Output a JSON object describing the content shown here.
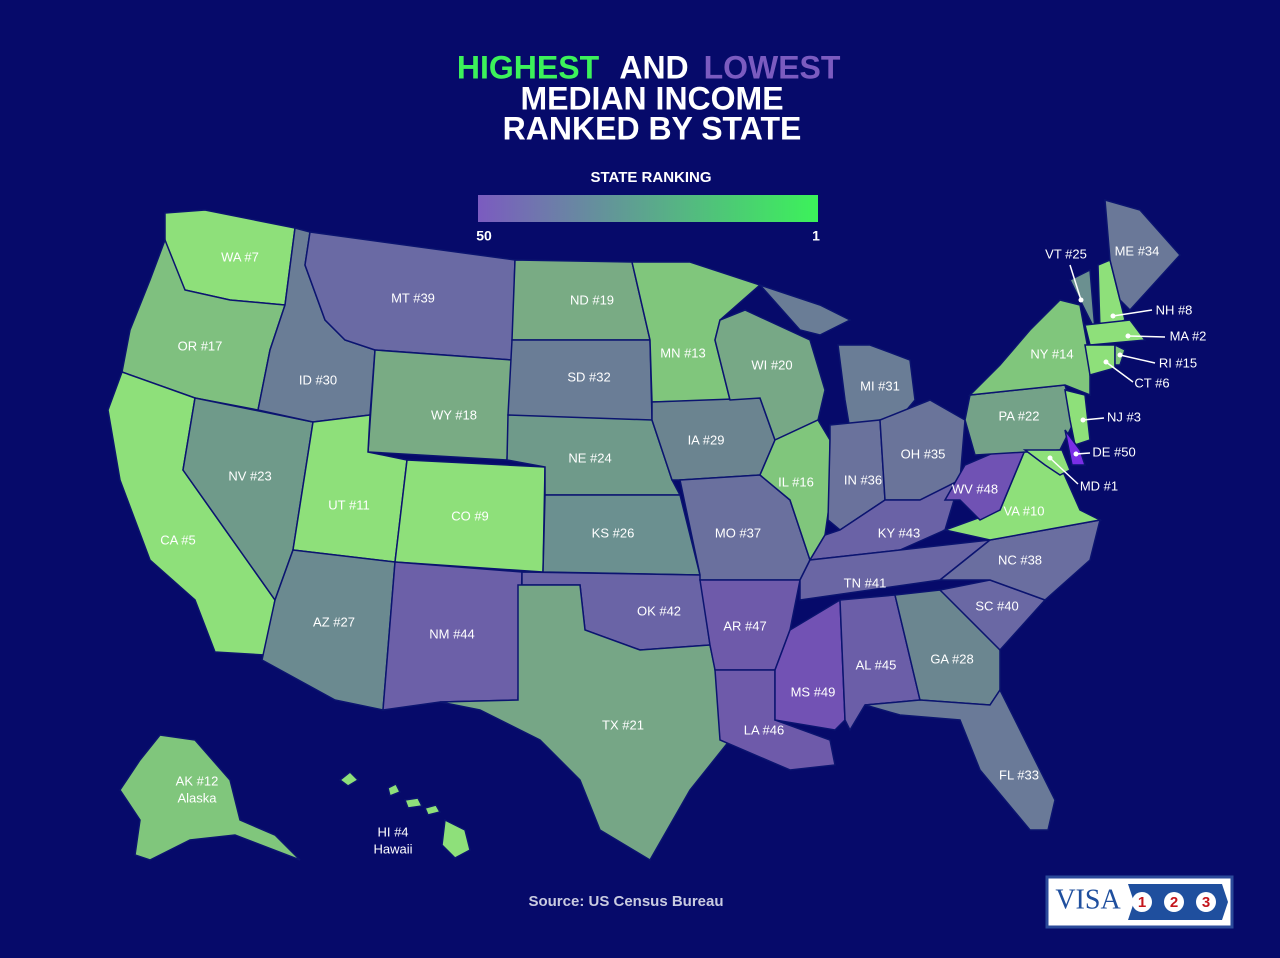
{
  "header": {
    "title_highest": "HIGHEST",
    "title_and": "AND",
    "title_lowest": "LOWEST",
    "title_line2": "MEDIAN INCOME",
    "title_line3": "RANKED BY STATE"
  },
  "legend": {
    "title": "STATE RANKING",
    "low_label": "50",
    "high_label": "1",
    "color_low": "#7b5bc0",
    "color_high": "#3cf25a"
  },
  "states": [
    {
      "label": "WA #7",
      "color": "#8ee07a"
    },
    {
      "label": "OR #17",
      "color": "#7fc07f"
    },
    {
      "label": "CA #5",
      "color": "#8ee07a"
    },
    {
      "label": "NV #23",
      "color": "#6f9a8a"
    },
    {
      "label": "ID #30",
      "color": "#6a7d96"
    },
    {
      "label": "MT #39",
      "color": "#6a6aa4"
    },
    {
      "label": "WY #18",
      "color": "#79ab84"
    },
    {
      "label": "UT #11",
      "color": "#8ee07a"
    },
    {
      "label": "CO #9",
      "color": "#8ee07a"
    },
    {
      "label": "AZ #27",
      "color": "#6b8a90"
    },
    {
      "label": "NM #44",
      "color": "#6c60a8"
    },
    {
      "label": "ND #19",
      "color": "#79ab84"
    },
    {
      "label": "SD #32",
      "color": "#6a7d96"
    },
    {
      "label": "NE #24",
      "color": "#6f9a8a"
    },
    {
      "label": "KS #26",
      "color": "#6b9090"
    },
    {
      "label": "OK #42",
      "color": "#6a64a6"
    },
    {
      "label": "TX #21",
      "color": "#76a686"
    },
    {
      "label": "MN #13",
      "color": "#80c67c"
    },
    {
      "label": "IA #29",
      "color": "#6b8490"
    },
    {
      "label": "MO #37",
      "color": "#6a709e"
    },
    {
      "label": "AR #47",
      "color": "#6e5aaa"
    },
    {
      "label": "LA #46",
      "color": "#6e5aaa"
    },
    {
      "label": "WI #20",
      "color": "#77a886"
    },
    {
      "label": "IL #16",
      "color": "#80c67c"
    },
    {
      "label": "MI #31",
      "color": "#6a7d96"
    },
    {
      "label": "IN #36",
      "color": "#6a729c"
    },
    {
      "label": "OH #35",
      "color": "#6a749a"
    },
    {
      "label": "KY #43",
      "color": "#6a62a6"
    },
    {
      "label": "TN #41",
      "color": "#6a66a4"
    },
    {
      "label": "MS #49",
      "color": "#7252b4"
    },
    {
      "label": "AL #45",
      "color": "#6b5ea8"
    },
    {
      "label": "GA #28",
      "color": "#6b8690"
    },
    {
      "label": "FL #33",
      "color": "#6a7a98"
    },
    {
      "label": "SC #40",
      "color": "#6a68a4"
    },
    {
      "label": "NC #38",
      "color": "#6a6ea0"
    },
    {
      "label": "VA #10",
      "color": "#8ee07a"
    },
    {
      "label": "WV #48",
      "color": "#7052b4"
    },
    {
      "label": "PA #22",
      "color": "#74a288"
    },
    {
      "label": "NY #14",
      "color": "#80c67c"
    },
    {
      "label": "NJ #3",
      "color": "#8ee07a"
    },
    {
      "label": "DE #50",
      "color": "#7a2ee6"
    },
    {
      "label": "MD #1",
      "color": "#8ee07a"
    },
    {
      "label": "VT #25",
      "color": "#6b9090"
    },
    {
      "label": "NH #8",
      "color": "#8ee07a"
    },
    {
      "label": "ME #34",
      "color": "#6a7898"
    },
    {
      "label": "MA #2",
      "color": "#8ee07a"
    },
    {
      "label": "CT #6",
      "color": "#8ee07a"
    },
    {
      "label": "RI #15",
      "color": "#80c67c"
    },
    {
      "label": "AK #12",
      "sublabel": "Alaska",
      "color": "#80c67c"
    },
    {
      "label": "HI #4",
      "sublabel": "Hawaii",
      "color": "#8ee07a"
    }
  ],
  "footer": {
    "source": "Source: US Census Bureau"
  },
  "logo": {
    "text": "VISA",
    "steps": [
      "1",
      "2",
      "3"
    ]
  }
}
